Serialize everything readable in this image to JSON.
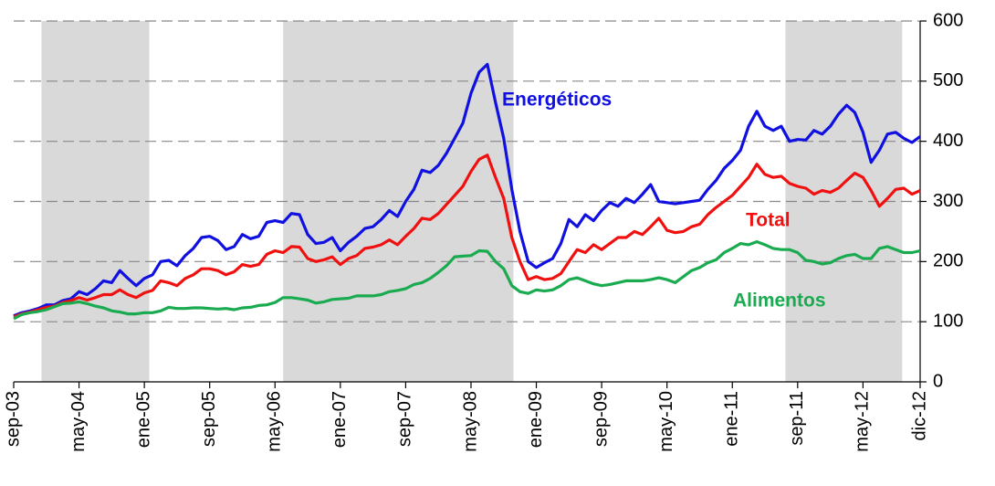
{
  "chart_data": {
    "type": "line",
    "categories": [
      "sep-03",
      null,
      null,
      null,
      null,
      null,
      null,
      null,
      "may-04",
      null,
      null,
      null,
      null,
      null,
      null,
      null,
      "ene-05",
      null,
      null,
      null,
      null,
      null,
      null,
      null,
      "sep-05",
      null,
      null,
      null,
      null,
      null,
      null,
      null,
      "may-06",
      null,
      null,
      null,
      null,
      null,
      null,
      null,
      "ene-07",
      null,
      null,
      null,
      null,
      null,
      null,
      null,
      "sep-07",
      null,
      null,
      null,
      null,
      null,
      null,
      null,
      "may-08",
      null,
      null,
      null,
      null,
      null,
      null,
      null,
      "ene-09",
      null,
      null,
      null,
      null,
      null,
      null,
      null,
      "sep-09",
      null,
      null,
      null,
      null,
      null,
      null,
      null,
      "may-10",
      null,
      null,
      null,
      null,
      null,
      null,
      null,
      "ene-11",
      null,
      null,
      null,
      null,
      null,
      null,
      null,
      "sep-11",
      null,
      null,
      null,
      null,
      null,
      null,
      null,
      "may-12",
      null,
      null,
      null,
      null,
      null,
      null,
      "dic-12"
    ],
    "series": [
      {
        "name": "Energéticos",
        "color": "#1010e0",
        "values": [
          110,
          115,
          118,
          122,
          128,
          128,
          135,
          138,
          150,
          145,
          155,
          168,
          165,
          185,
          172,
          160,
          172,
          178,
          200,
          202,
          193,
          210,
          222,
          240,
          242,
          235,
          220,
          225,
          245,
          238,
          242,
          265,
          268,
          265,
          280,
          278,
          245,
          230,
          232,
          240,
          218,
          232,
          242,
          255,
          258,
          270,
          285,
          275,
          300,
          320,
          352,
          348,
          360,
          380,
          405,
          430,
          480,
          515,
          528,
          465,
          405,
          320,
          250,
          200,
          190,
          198,
          205,
          230,
          270,
          258,
          278,
          268,
          285,
          298,
          292,
          305,
          298,
          312,
          328,
          300,
          298,
          296,
          298,
          300,
          302,
          320,
          335,
          355,
          368,
          385,
          425,
          450,
          425,
          418,
          425,
          400,
          403,
          402,
          418,
          412,
          425,
          445,
          460,
          448,
          415,
          365,
          385,
          412,
          415,
          405,
          398,
          408
        ]
      },
      {
        "name": "Total",
        "color": "#f01010",
        "values": [
          108,
          113,
          116,
          120,
          124,
          126,
          132,
          135,
          140,
          136,
          140,
          145,
          145,
          153,
          145,
          140,
          148,
          152,
          168,
          165,
          160,
          172,
          178,
          188,
          188,
          185,
          178,
          183,
          195,
          192,
          195,
          212,
          218,
          215,
          225,
          224,
          205,
          200,
          203,
          208,
          195,
          205,
          210,
          222,
          224,
          228,
          236,
          228,
          242,
          255,
          272,
          270,
          280,
          295,
          310,
          325,
          350,
          370,
          377,
          340,
          305,
          240,
          200,
          170,
          175,
          170,
          172,
          180,
          200,
          220,
          215,
          228,
          220,
          230,
          240,
          240,
          250,
          245,
          258,
          272,
          252,
          248,
          250,
          258,
          262,
          278,
          290,
          300,
          310,
          325,
          340,
          362,
          345,
          340,
          342,
          330,
          325,
          322,
          312,
          318,
          315,
          322,
          335,
          347,
          340,
          318,
          292,
          305,
          320,
          322,
          312,
          318
        ]
      },
      {
        "name": "Alimentos",
        "color": "#1aaa50",
        "values": [
          105,
          112,
          115,
          117,
          120,
          125,
          130,
          131,
          133,
          130,
          126,
          123,
          118,
          116,
          113,
          113,
          115,
          115,
          118,
          124,
          122,
          122,
          123,
          123,
          122,
          121,
          122,
          120,
          123,
          124,
          127,
          128,
          132,
          140,
          140,
          138,
          136,
          131,
          133,
          137,
          138,
          139,
          143,
          143,
          143,
          145,
          150,
          152,
          155,
          162,
          165,
          172,
          182,
          193,
          208,
          209,
          210,
          218,
          217,
          200,
          188,
          160,
          150,
          147,
          153,
          151,
          153,
          160,
          170,
          173,
          168,
          163,
          160,
          162,
          165,
          168,
          168,
          168,
          170,
          173,
          170,
          165,
          175,
          185,
          190,
          198,
          203,
          215,
          222,
          230,
          228,
          233,
          228,
          222,
          220,
          220,
          215,
          202,
          200,
          196,
          198,
          205,
          210,
          212,
          205,
          205,
          222,
          225,
          220,
          215,
          215,
          218
        ]
      }
    ],
    "ylim": [
      0,
      600
    ],
    "yticks": [
      0,
      100,
      200,
      300,
      400,
      500,
      600
    ],
    "grid": true,
    "shaded": [
      [
        3.4,
        16.6
      ],
      [
        33,
        61.2
      ],
      [
        94.5,
        108.8
      ]
    ]
  }
}
